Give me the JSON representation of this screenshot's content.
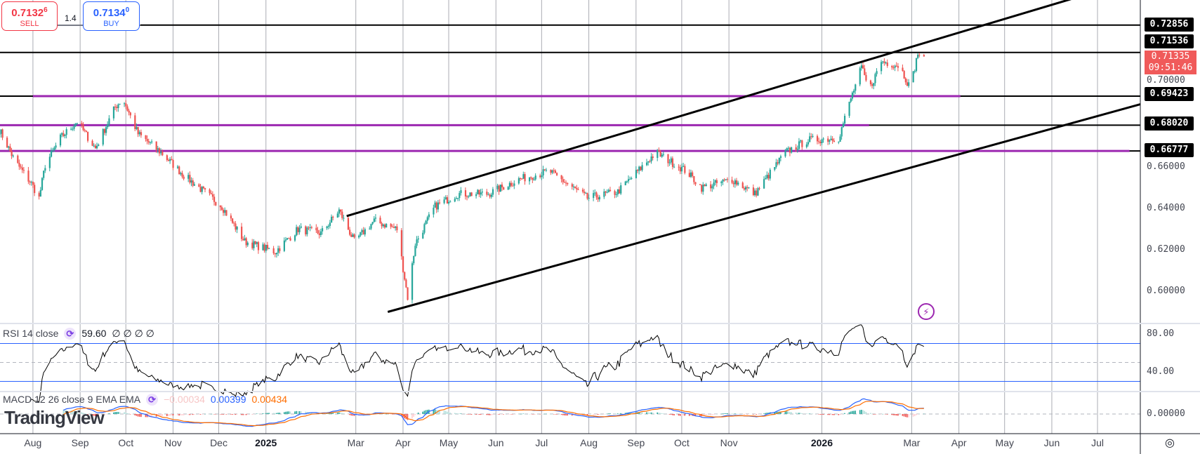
{
  "trade": {
    "sell_price": "0.7132",
    "sell_sup": "6",
    "sell_label": "SELL",
    "buy_price": "0.7134",
    "buy_sup": "0",
    "buy_label": "BUY",
    "spread": "1.4"
  },
  "indicators": {
    "rsi": {
      "name": "RSI 14 close",
      "value": "59.60",
      "extra": "∅ ∅ ∅ ∅"
    },
    "macd": {
      "name": "MACD 12 26 close 9 EMA EMA",
      "hist": "−0.00034",
      "macd": "0.00399",
      "signal": "0.00434"
    }
  },
  "logo": "TradingView",
  "price_axis": {
    "ticks": [
      "0.70000",
      "0.66000",
      "0.64000",
      "0.62000",
      "0.60000"
    ],
    "level_labels": [
      "0.72856",
      "0.71536",
      "0.69423",
      "0.68020",
      "0.66777"
    ],
    "last_price": "0.71335",
    "countdown": "09:51:46",
    "rsi_ticks": [
      "80.00",
      "40.00"
    ],
    "macd_ticks": [
      "0.00000"
    ]
  },
  "chart_data": {
    "type": "candlestick",
    "interval": "1D",
    "x_ticks": [
      {
        "label": "Aug",
        "date": "2024-08-01"
      },
      {
        "label": "Sep",
        "date": "2024-09-01"
      },
      {
        "label": "Oct",
        "date": "2024-10-01"
      },
      {
        "label": "Nov",
        "date": "2024-11-01"
      },
      {
        "label": "Dec",
        "date": "2024-12-01"
      },
      {
        "label": "2025",
        "date": "2025-01-01",
        "year": true
      },
      {
        "label": "Mar",
        "date": "2025-03-01"
      },
      {
        "label": "Apr",
        "date": "2025-04-01"
      },
      {
        "label": "May",
        "date": "2025-05-01"
      },
      {
        "label": "Jun",
        "date": "2025-06-01"
      },
      {
        "label": "Jul",
        "date": "2025-07-01"
      },
      {
        "label": "Aug",
        "date": "2025-08-01"
      },
      {
        "label": "Sep",
        "date": "2025-09-01"
      },
      {
        "label": "Oct",
        "date": "2025-10-01"
      },
      {
        "label": "Nov",
        "date": "2025-11-01"
      },
      {
        "label": "2026",
        "date": "2026-01-01",
        "year": true
      },
      {
        "label": "Mar",
        "date": "2026-03-01"
      },
      {
        "label": "Apr",
        "date": "2026-04-01"
      },
      {
        "label": "May",
        "date": "2026-05-01"
      },
      {
        "label": "Jun",
        "date": "2026-06-01"
      },
      {
        "label": "Jul",
        "date": "2026-07-01"
      }
    ],
    "ylim": [
      0.585,
      0.745
    ],
    "close_path": [
      [
        "2024-07-10",
        0.678
      ],
      [
        "2024-07-20",
        0.663
      ],
      [
        "2024-07-31",
        0.652
      ],
      [
        "2024-08-05",
        0.645
      ],
      [
        "2024-08-09",
        0.661
      ],
      [
        "2024-08-19",
        0.674
      ],
      [
        "2024-08-30",
        0.682
      ],
      [
        "2024-09-11",
        0.669
      ],
      [
        "2024-09-24",
        0.689
      ],
      [
        "2024-09-29",
        0.693
      ],
      [
        "2024-10-09",
        0.676
      ],
      [
        "2024-10-24",
        0.667
      ],
      [
        "2024-11-08",
        0.656
      ],
      [
        "2024-11-18",
        0.65
      ],
      [
        "2024-12-03",
        0.641
      ],
      [
        "2024-12-18",
        0.624
      ],
      [
        "2025-01-07",
        0.619
      ],
      [
        "2025-01-22",
        0.63
      ],
      [
        "2025-02-06",
        0.628
      ],
      [
        "2025-02-18",
        0.639
      ],
      [
        "2025-02-28",
        0.624
      ],
      [
        "2025-03-13",
        0.634
      ],
      [
        "2025-03-28",
        0.63
      ],
      [
        "2025-04-04",
        0.597
      ],
      [
        "2025-04-09",
        0.623
      ],
      [
        "2025-04-22",
        0.641
      ],
      [
        "2025-05-07",
        0.647
      ],
      [
        "2025-05-27",
        0.647
      ],
      [
        "2025-06-16",
        0.654
      ],
      [
        "2025-07-06",
        0.658
      ],
      [
        "2025-07-31",
        0.645
      ],
      [
        "2025-08-20",
        0.648
      ],
      [
        "2025-09-14",
        0.667
      ],
      [
        "2025-10-04",
        0.658
      ],
      [
        "2025-10-14",
        0.65
      ],
      [
        "2025-11-03",
        0.654
      ],
      [
        "2025-11-18",
        0.647
      ],
      [
        "2025-12-08",
        0.667
      ],
      [
        "2025-12-23",
        0.673
      ],
      [
        "2026-01-12",
        0.674
      ],
      [
        "2026-01-20",
        0.693
      ],
      [
        "2026-01-27",
        0.708
      ],
      [
        "2026-02-01",
        0.697
      ],
      [
        "2026-02-09",
        0.711
      ],
      [
        "2026-02-21",
        0.709
      ],
      [
        "2026-02-28",
        0.698
      ],
      [
        "2026-03-05",
        0.715
      ],
      [
        "2026-03-09",
        0.71335
      ]
    ],
    "horizontal_levels": [
      {
        "price": 0.72856,
        "color": "#000000"
      },
      {
        "price": 0.71536,
        "color": "#000000"
      },
      {
        "price": 0.69423,
        "color": "#9c27b0",
        "purple_from": "2024-08-01",
        "purple_to": "2026-04-02"
      },
      {
        "price": 0.6802,
        "color": "#9c27b0",
        "purple_to": "2026-02-01"
      },
      {
        "price": 0.66777,
        "color": "#9c27b0",
        "purple_to": "2026-07-22"
      }
    ],
    "trendlines": [
      {
        "p1": [
          "2025-02-23",
          0.6363
        ],
        "p2": [
          "2026-06-13",
          0.741
        ]
      },
      {
        "p1": [
          "2025-03-22",
          0.59
        ],
        "p2": [
          "2026-09-05",
          0.698
        ]
      }
    ],
    "rsi_levels": [
      70,
      50,
      30
    ],
    "colors": {
      "up": "#26a69a",
      "down": "#ef5350",
      "macd": "#2962ff",
      "signal": "#ff6d00",
      "rsi": "#000000",
      "grid": "#9598a1"
    }
  }
}
